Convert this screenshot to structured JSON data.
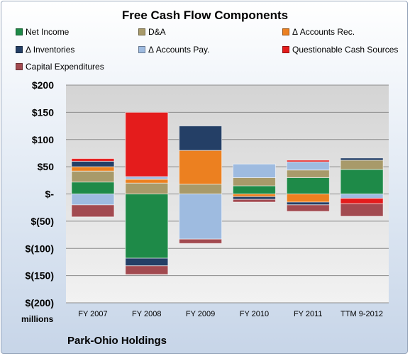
{
  "chart_data": {
    "type": "bar",
    "stacked": true,
    "title": "Free Cash Flow Components",
    "ylabel": "millions",
    "ylim": [
      -200,
      200
    ],
    "yticks": [
      200,
      150,
      100,
      50,
      0,
      -50,
      -100,
      -150,
      -200
    ],
    "ytick_labels": [
      "$200",
      "$150",
      "$100",
      "$50",
      "$-",
      "$(50)",
      "$(100)",
      "$(150)",
      "$(200)"
    ],
    "categories": [
      "FY 2007",
      "FY 2008",
      "FY 2009",
      "FY 2010",
      "FY 2011",
      "TTM 9-2012"
    ],
    "series": [
      {
        "name": "Net Income",
        "color": "#1e8a48",
        "values": [
          22,
          -118,
          0,
          15,
          30,
          45
        ]
      },
      {
        "name": "D&A",
        "color": "#a89a6a",
        "values": [
          20,
          20,
          18,
          15,
          14,
          17
        ]
      },
      {
        "name": "Δ Accounts Rec.",
        "color": "#ec8020",
        "values": [
          8,
          7,
          62,
          -5,
          -15,
          0
        ]
      },
      {
        "name": "Δ Inventories",
        "color": "#243f66",
        "values": [
          10,
          -14,
          45,
          -5,
          -5,
          4
        ]
      },
      {
        "name": "Δ Accounts Pay.",
        "color": "#9ebbe0",
        "values": [
          -20,
          5,
          -83,
          25,
          15,
          -8
        ]
      },
      {
        "name": "Questionable Cash Sources",
        "color": "#e41c1c",
        "values": [
          5,
          118,
          0,
          0,
          3,
          -10
        ]
      },
      {
        "name": "Capital Expenditures",
        "color": "#a24a50",
        "values": [
          -22,
          -16,
          -8,
          -5,
          -12,
          -23
        ]
      }
    ],
    "grid": true,
    "legend": "top"
  },
  "footer": "Park-Ohio Holdings"
}
